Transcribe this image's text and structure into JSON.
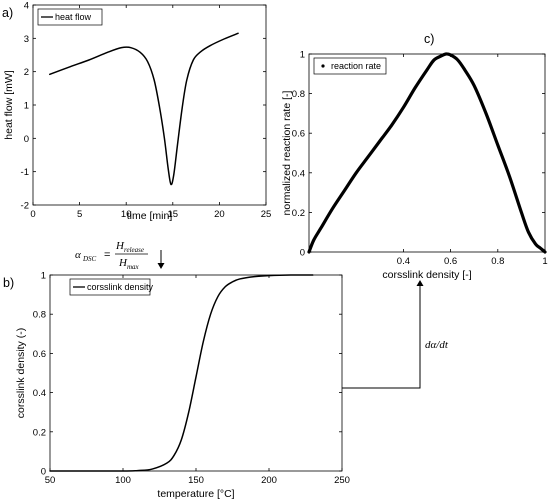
{
  "chart_data": [
    {
      "panel": "a)",
      "type": "line",
      "legend": [
        "heat flow"
      ],
      "legend_position": "top-left",
      "xlabel": "time [min]",
      "ylabel": "heat flow [mW]",
      "xlim": [
        0,
        25
      ],
      "ylim": [
        -2,
        4
      ],
      "xticks": [
        "0",
        "5",
        "10",
        "15",
        "20",
        "25"
      ],
      "yticks": [
        "-2",
        "-1",
        "0",
        "1",
        "2",
        "3",
        "4"
      ],
      "series": [
        {
          "name": "heat flow",
          "x": [
            1.8,
            4,
            6,
            8,
            9.5,
            10.5,
            11.5,
            12.3,
            13.0,
            13.6,
            14.1,
            14.5,
            14.8,
            15.1,
            15.5,
            16.0,
            16.5,
            17.2,
            18.0,
            19.0,
            20.5,
            22.0
          ],
          "y": [
            1.92,
            2.15,
            2.35,
            2.58,
            2.72,
            2.72,
            2.58,
            2.3,
            1.75,
            0.9,
            0.0,
            -0.9,
            -1.38,
            -1.1,
            -0.2,
            0.9,
            1.75,
            2.35,
            2.6,
            2.78,
            2.98,
            3.15
          ]
        }
      ]
    },
    {
      "panel": "b)",
      "type": "line",
      "legend": [
        "corsslink density"
      ],
      "legend_position": "top-left",
      "xlabel": "temperature [°C]",
      "ylabel": "corsslink density (-)",
      "xlim": [
        50,
        250
      ],
      "ylim": [
        0,
        1
      ],
      "xticks": [
        "50",
        "100",
        "150",
        "200",
        "250"
      ],
      "yticks": [
        "0",
        "0.2",
        "0.4",
        "0.6",
        "0.8",
        "1"
      ],
      "series": [
        {
          "name": "corsslink density",
          "x": [
            50,
            100,
            110,
            120,
            130,
            135,
            140,
            145,
            150,
            155,
            160,
            165,
            170,
            175,
            180,
            190,
            200,
            215,
            230
          ],
          "y": [
            0,
            0,
            0.002,
            0.01,
            0.04,
            0.08,
            0.16,
            0.3,
            0.48,
            0.66,
            0.8,
            0.89,
            0.94,
            0.965,
            0.98,
            0.992,
            0.997,
            1.0,
            1.0
          ]
        }
      ]
    },
    {
      "panel": "c)",
      "type": "scatter",
      "legend": [
        "reaction rate"
      ],
      "legend_position": "top-left",
      "xlabel": "corsslink density [-]",
      "ylabel": "normalized reaction rate [-]",
      "xlim": [
        0,
        1
      ],
      "ylim": [
        0,
        1
      ],
      "xticks": [
        "0.4",
        "0.6",
        "0.8",
        "1"
      ],
      "yticks": [
        "0",
        "0.2",
        "0.4",
        "0.6",
        "0.8",
        "1"
      ],
      "series": [
        {
          "name": "reaction rate",
          "x": [
            0,
            0.02,
            0.05,
            0.1,
            0.15,
            0.2,
            0.25,
            0.3,
            0.35,
            0.4,
            0.45,
            0.5,
            0.53,
            0.56,
            0.58,
            0.6,
            0.63,
            0.66,
            0.7,
            0.75,
            0.8,
            0.85,
            0.9,
            0.93,
            0.96,
            0.98,
            1.0
          ],
          "y": [
            0.0,
            0.06,
            0.12,
            0.22,
            0.31,
            0.4,
            0.48,
            0.56,
            0.64,
            0.73,
            0.83,
            0.92,
            0.97,
            0.99,
            1.0,
            0.995,
            0.97,
            0.92,
            0.84,
            0.7,
            0.54,
            0.38,
            0.2,
            0.1,
            0.04,
            0.02,
            0.0
          ]
        }
      ]
    }
  ],
  "annotations": {
    "eq_lhs": "α",
    "eq_lhs_sub": "DSC",
    "eq_num": "H",
    "eq_num_sub": "release",
    "eq_den": "H",
    "eq_den_sub": "max",
    "rate_label": "dα/dt"
  }
}
